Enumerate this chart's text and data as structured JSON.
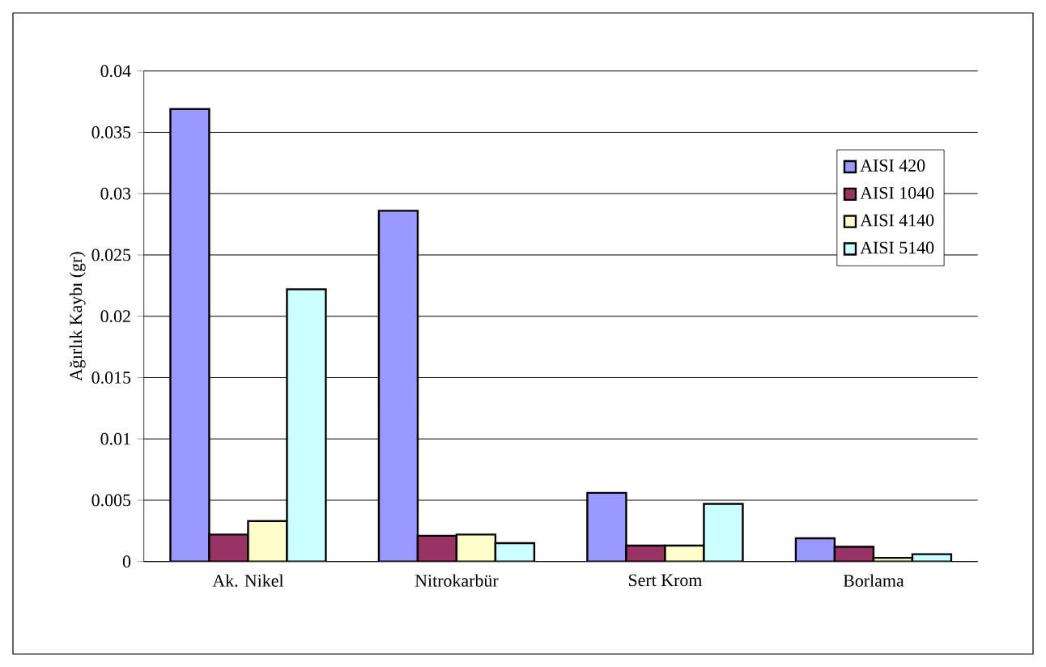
{
  "chart_data": {
    "type": "bar",
    "ylabel": "Ağırlık Kaybı (gr)",
    "categories": [
      "Ak. Nikel",
      "Nitrokarbür",
      "Sert Krom",
      "Borlama"
    ],
    "series": [
      {
        "name": "AISI 420",
        "color": "#9999ff",
        "values": [
          0.0369,
          0.0286,
          0.0056,
          0.0019
        ]
      },
      {
        "name": "AISI 1040",
        "color": "#993366",
        "values": [
          0.0022,
          0.0021,
          0.0013,
          0.0012
        ]
      },
      {
        "name": "AISI 4140",
        "color": "#ffffcc",
        "values": [
          0.0033,
          0.0022,
          0.0013,
          0.0003
        ]
      },
      {
        "name": "AISI 5140",
        "color": "#ccffff",
        "values": [
          0.0222,
          0.0015,
          0.0047,
          0.0006
        ]
      }
    ],
    "ylim": [
      0,
      0.04
    ],
    "yticks": [
      0,
      0.005,
      0.01,
      0.015,
      0.02,
      0.025,
      0.03,
      0.035,
      0.04
    ],
    "grid": "y",
    "legend": "right"
  }
}
